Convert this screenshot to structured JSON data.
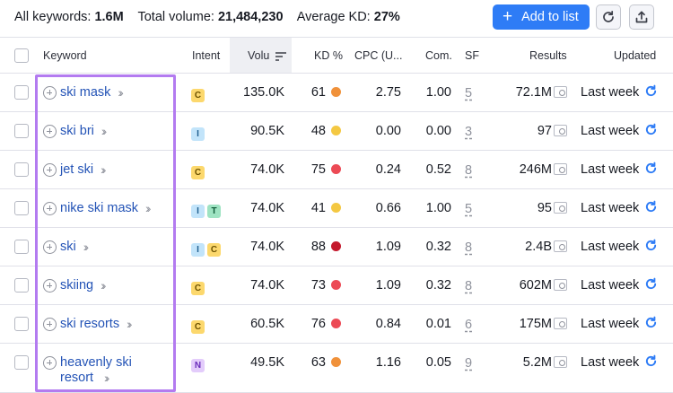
{
  "summary": {
    "all_keywords_label": "All keywords:",
    "all_keywords_value": "1.6M",
    "total_volume_label": "Total volume:",
    "total_volume_value": "21,484,230",
    "avg_kd_label": "Average KD:",
    "avg_kd_value": "27%"
  },
  "toolbar": {
    "add_to_list_label": "Add to list",
    "add_icon": "plus-icon",
    "refresh_icon": "refresh-icon",
    "export_icon": "export-icon"
  },
  "columns": {
    "keyword": "Keyword",
    "intent": "Intent",
    "volume": "Volu",
    "kd": "KD %",
    "cpc": "CPC (U...",
    "com": "Com.",
    "sf": "SF",
    "results": "Results",
    "updated": "Updated"
  },
  "colors": {
    "accent": "#2e7cf6",
    "link": "#2353b6",
    "highlight": "#b37bf0",
    "kd_orange": "#f0913a",
    "kd_yellow": "#f4c842",
    "kd_red": "#ec4a55",
    "kd_darkred": "#c4182c"
  },
  "rows": [
    {
      "keyword": "ski mask",
      "intent": [
        "C"
      ],
      "volume": "135.0K",
      "kd": "61",
      "kd_color": "#f0913a",
      "cpc": "2.75",
      "com": "1.00",
      "sf": "5",
      "results": "72.1M",
      "updated": "Last week"
    },
    {
      "keyword": "ski bri",
      "intent": [
        "I"
      ],
      "volume": "90.5K",
      "kd": "48",
      "kd_color": "#f4c842",
      "cpc": "0.00",
      "com": "0.00",
      "sf": "3",
      "results": "97",
      "updated": "Last week"
    },
    {
      "keyword": "jet ski",
      "intent": [
        "C"
      ],
      "volume": "74.0K",
      "kd": "75",
      "kd_color": "#ec4a55",
      "cpc": "0.24",
      "com": "0.52",
      "sf": "8",
      "results": "246M",
      "updated": "Last week"
    },
    {
      "keyword": "nike ski mask",
      "intent": [
        "I",
        "T"
      ],
      "volume": "74.0K",
      "kd": "41",
      "kd_color": "#f4c842",
      "cpc": "0.66",
      "com": "1.00",
      "sf": "5",
      "results": "95",
      "updated": "Last week"
    },
    {
      "keyword": "ski",
      "intent": [
        "I",
        "C"
      ],
      "volume": "74.0K",
      "kd": "88",
      "kd_color": "#c4182c",
      "cpc": "1.09",
      "com": "0.32",
      "sf": "8",
      "results": "2.4B",
      "updated": "Last week"
    },
    {
      "keyword": "skiing",
      "intent": [
        "C"
      ],
      "volume": "74.0K",
      "kd": "73",
      "kd_color": "#ec4a55",
      "cpc": "1.09",
      "com": "0.32",
      "sf": "8",
      "results": "602M",
      "updated": "Last week"
    },
    {
      "keyword": "ski resorts",
      "intent": [
        "C"
      ],
      "volume": "60.5K",
      "kd": "76",
      "kd_color": "#ec4a55",
      "cpc": "0.84",
      "com": "0.01",
      "sf": "6",
      "results": "175M",
      "updated": "Last week"
    },
    {
      "keyword": "heavenly ski resort",
      "intent": [
        "N"
      ],
      "volume": "49.5K",
      "kd": "63",
      "kd_color": "#f0913a",
      "cpc": "1.16",
      "com": "0.05",
      "sf": "9",
      "results": "5.2M",
      "updated": "Last week"
    }
  ]
}
